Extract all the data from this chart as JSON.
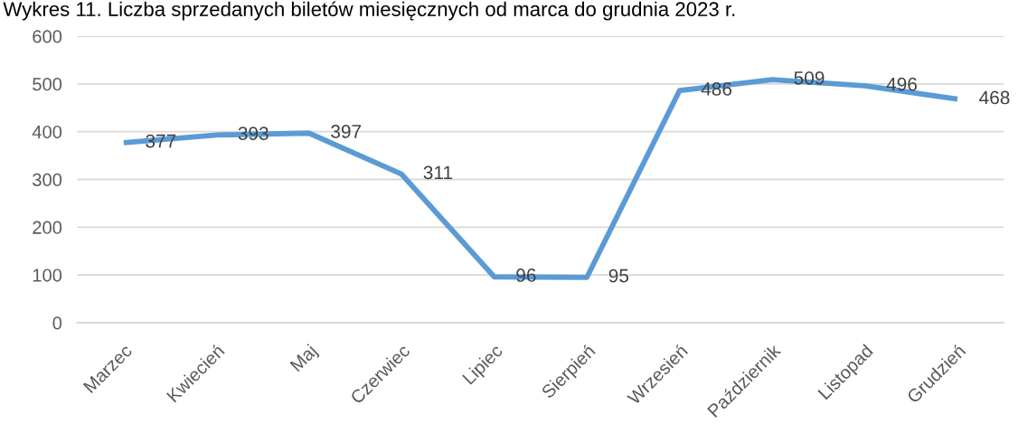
{
  "chart_data": {
    "type": "line",
    "title": "Wykres 11. Liczba sprzedanych biletów miesięcznych od marca do grudnia 2023 r.",
    "categories": [
      "Marzec",
      "Kwiecień",
      "Maj",
      "Czerwiec",
      "Lipiec",
      "Sierpień",
      "Wrzesień",
      "Październik",
      "Listopad",
      "Grudzień"
    ],
    "series": [
      {
        "color": "#5b9bd5",
        "values": [
          377,
          393,
          397,
          311,
          96,
          95,
          486,
          509,
          496,
          468
        ]
      }
    ],
    "ylim": [
      0,
      600
    ],
    "yticks": [
      0,
      100,
      200,
      300,
      400,
      500,
      600
    ],
    "grid": "y",
    "data_labels": true,
    "line_style": "solid"
  }
}
